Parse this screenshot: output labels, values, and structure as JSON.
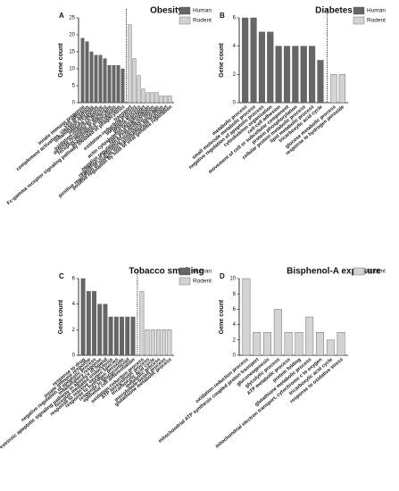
{
  "chart_data": [
    {
      "type": "bar",
      "panel": "A",
      "title": "Obesity",
      "y_label": "Gene count",
      "ylim": [
        0,
        25
      ],
      "yticks": [
        0,
        5,
        10,
        15,
        20,
        25
      ],
      "series": [
        {
          "name": "Human",
          "color": "#666666",
          "categories": [
            "innate immune response",
            "cell adhesion",
            "complement activation, classical pathway",
            "inflammatory response",
            "immune response",
            "oxidation-reduction process",
            "defense response to bacterium",
            "receptor-mediated endocytosis",
            "phagocytosis, recognition",
            "Fc-gamma receptor signaling pathway involved in phagocytosis"
          ],
          "values": [
            19,
            18,
            15,
            14,
            14,
            13,
            11,
            11,
            11,
            10
          ]
        },
        {
          "name": "Rodent",
          "color": "#d3d3d3",
          "categories": [
            "transport",
            "oxidation-reduction process",
            "metabolic process",
            "protein transport",
            "actin cytoskeleton reorganization",
            "fatty acid beta-oxidation",
            "negative regulation of cholesterol storage",
            "regulation of intestinal cholesterol absorption",
            "positive regulation of sodium ion transmembrane transport",
            "positive regulation by host of viral genome replication"
          ],
          "values": [
            23,
            13,
            8,
            4,
            3,
            3,
            3,
            2,
            2,
            2
          ]
        }
      ]
    },
    {
      "type": "bar",
      "panel": "B",
      "title": "Diabetes",
      "y_label": "Gene count",
      "ylim": [
        0,
        6
      ],
      "yticks": [
        0,
        2,
        4,
        6
      ],
      "series": [
        {
          "name": "Human",
          "color": "#666666",
          "categories": [
            "metabolic process",
            "small molecule metabolic process",
            "negative regulation of apoptotic process",
            "cytoskeleton organization",
            "cell-cell adhesion",
            "movement of cell or subcellular component",
            "protein phosphorylation",
            "cellular protein metabolic process",
            "lipid metabolic process",
            "tricarboxylic acid cycle"
          ],
          "values": [
            6,
            6,
            5,
            5,
            4,
            4,
            4,
            4,
            4,
            3
          ]
        },
        {
          "name": "Rodent",
          "color": "#d3d3d3",
          "categories": [
            "glucose metabolic process",
            "response to hydrogen peroxide"
          ],
          "values": [
            2,
            2
          ]
        }
      ]
    },
    {
      "type": "bar",
      "panel": "C",
      "title": "Tobacco smoking",
      "y_label": "Gene count",
      "ylim": [
        0,
        6
      ],
      "yticks": [
        0,
        2,
        4,
        6
      ],
      "series": [
        {
          "name": "Human",
          "color": "#666666",
          "categories": [
            "response to drug",
            "innate immune response",
            "negative regulation of apoptotic process",
            "inflammatory response",
            "extrinsic apoptotic signaling pathway in absence of ligand",
            "receptor-mediated endocytosis",
            "response to reactive oxygen species",
            "response to hydrogen peroxide",
            "response to glucocorticoid",
            "epithelial cell differentiation"
          ],
          "values": [
            6,
            5,
            5,
            4,
            4,
            3,
            3,
            3,
            3,
            3
          ]
        },
        {
          "name": "Rodent",
          "color": "#d3d3d3",
          "categories": [
            "oxidation-reduction process",
            "ATP biosynthetic process",
            "tricarboxylic acid cycle",
            "metabolic process",
            "microtubule-based process",
            "glutathione metabolic process"
          ],
          "values": [
            5,
            2,
            2,
            2,
            2,
            2
          ]
        }
      ]
    },
    {
      "type": "bar",
      "panel": "D",
      "title": "Bisphenol-A exposure",
      "y_label": "Gene count",
      "ylim": [
        0,
        10
      ],
      "yticks": [
        0,
        2,
        4,
        6,
        8,
        10
      ],
      "series": [
        {
          "name": "Rodent",
          "color": "#d3d3d3",
          "categories": [
            "oxidation-reduction process",
            "mitochondrial ATP synthesis coupled proton transport",
            "gluconeogenesis",
            "glycolytic process",
            "ATP metabolic process",
            "protein folding",
            "glutathione metabolic process",
            "mitochondrial electron transport, cytochrome c to oxygen",
            "tricarboxylic acid cycle",
            "response to oxidative stress"
          ],
          "values": [
            10,
            3,
            3,
            6,
            3,
            3,
            5,
            3,
            2,
            3
          ]
        }
      ]
    }
  ]
}
